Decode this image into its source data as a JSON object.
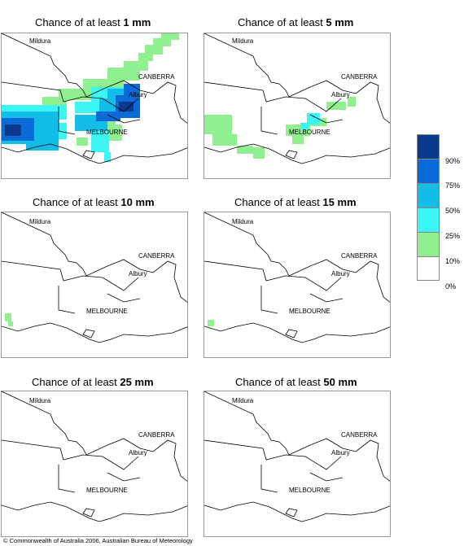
{
  "panels": [
    {
      "prefix": "Chance of at least ",
      "amount": "1 mm"
    },
    {
      "prefix": "Chance of at least ",
      "amount": "5 mm"
    },
    {
      "prefix": "Chance of at least ",
      "amount": "10 mm"
    },
    {
      "prefix": "Chance of at least ",
      "amount": "15 mm"
    },
    {
      "prefix": "Chance of at least ",
      "amount": "25 mm"
    },
    {
      "prefix": "Chance of at least ",
      "amount": "50 mm"
    }
  ],
  "places": {
    "mildura": "Mildura",
    "canberra": "CANBERRA",
    "albury": "Albury",
    "melbourne": "MELBOURNE"
  },
  "legend": {
    "labels": [
      "90%",
      "75%",
      "50%",
      "25%",
      "10%",
      "0%"
    ],
    "colors": [
      "#0a3a8f",
      "#0a6ad8",
      "#12bde8",
      "#3cf6f6",
      "#90f090",
      "#ffffff"
    ]
  },
  "copyright": "© Commonwealth of Australia 2006, Australian Bureau of Meteorology"
}
